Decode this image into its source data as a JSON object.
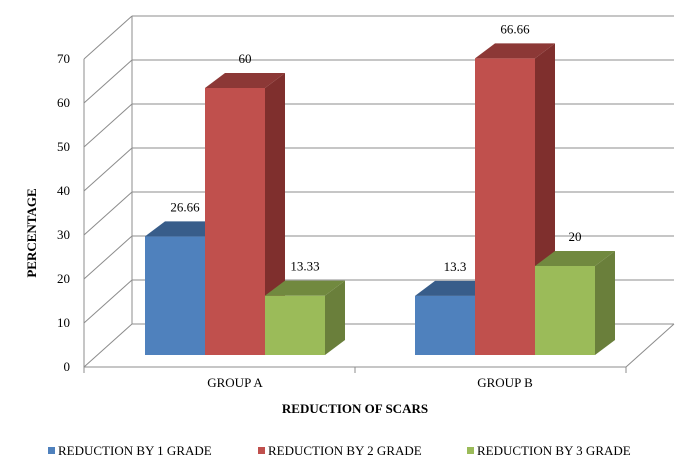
{
  "chart_data": {
    "type": "bar",
    "categories": [
      "GROUP A",
      "GROUP B"
    ],
    "series": [
      {
        "name": "REDUCTION BY 1 GRADE",
        "values": [
          26.66,
          13.3
        ],
        "labels": [
          "26.66",
          "13.3"
        ]
      },
      {
        "name": "REDUCTION BY 2 GRADE",
        "values": [
          60,
          66.66
        ],
        "labels": [
          "60",
          "66.66"
        ]
      },
      {
        "name": "REDUCTION BY 3 GRADE",
        "values": [
          13.33,
          20
        ],
        "labels": [
          "13.33",
          "20"
        ]
      }
    ],
    "colors": {
      "series_front": [
        "#4f81bd",
        "#c0504d",
        "#9bbb59"
      ],
      "series_side": [
        "#3a5f8c",
        "#7f2f2d",
        "#6a7f3b"
      ],
      "series_top": [
        "#385d8a",
        "#8c3836",
        "#71893f"
      ]
    },
    "xlabel": "REDUCTION OF SCARS",
    "ylabel": "PERCENTAGE",
    "ylim": [
      0,
      70
    ],
    "yticks": [
      "0",
      "10",
      "20",
      "30",
      "40",
      "50",
      "60",
      "70"
    ],
    "grid": true,
    "three_d": true,
    "legend_position": "bottom"
  }
}
